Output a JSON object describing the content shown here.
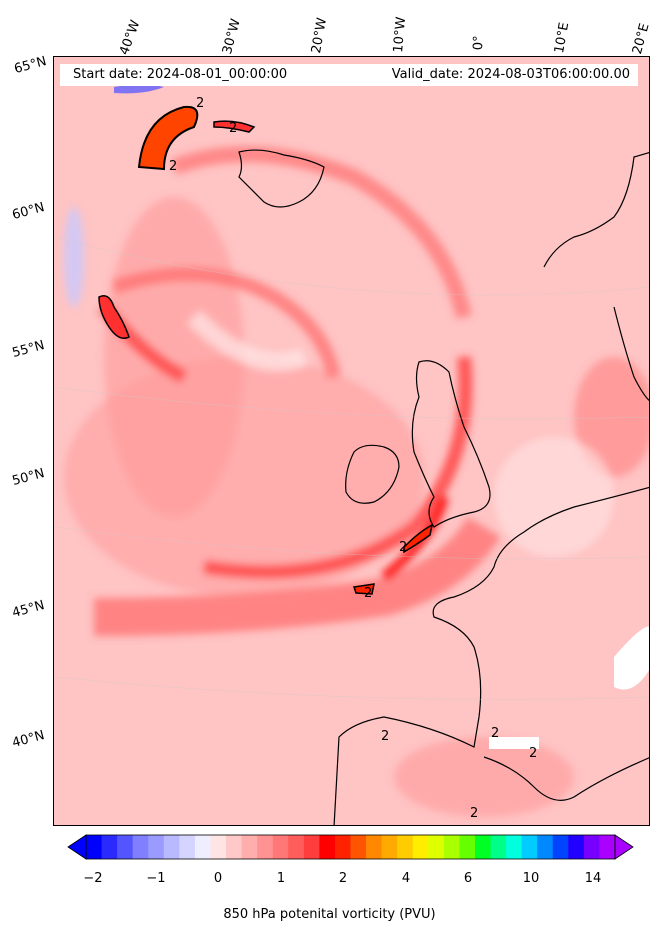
{
  "header": {
    "start_date": "Start date: 2024-08-01_00:00:00",
    "valid_date": "Valid_date: 2024-08-03T06:00:00.00"
  },
  "axes": {
    "longitude_labels": [
      "40°W",
      "30°W",
      "20°W",
      "10°W",
      "0°",
      "10°E",
      "20°E"
    ],
    "latitude_labels": [
      "65°N",
      "60°N",
      "55°N",
      "50°N",
      "45°N",
      "40°N"
    ]
  },
  "map": {
    "projection": "lambert-conformal",
    "field": "850 hPa potential vorticity",
    "contour_level_label": "2",
    "background_color": "#ffc4c4",
    "coastline_color": "#000000"
  },
  "colorbar": {
    "label": "850 hPa potenital vorticity (PVU)",
    "tick_labels": [
      "−2",
      "−1",
      "0",
      "1",
      "2",
      "4",
      "6",
      "10",
      "14"
    ],
    "colors": [
      "#0000ff",
      "#2a2aff",
      "#5555ff",
      "#7f7fff",
      "#9a9aff",
      "#b9b9ff",
      "#d4d4ff",
      "#eeeeff",
      "#ffe4e4",
      "#ffc9c9",
      "#ffaeae",
      "#ff9393",
      "#ff7777",
      "#ff5c5c",
      "#ff3d3d",
      "#ff0000",
      "#ff2200",
      "#ff5500",
      "#ff8800",
      "#ffaa00",
      "#ffcc00",
      "#ffee00",
      "#ddff00",
      "#aaff00",
      "#66ff00",
      "#00ff22",
      "#00ff88",
      "#00ffdd",
      "#00ccff",
      "#0088ff",
      "#0044ff",
      "#2200ff",
      "#7700ff",
      "#aa00ff"
    ]
  }
}
